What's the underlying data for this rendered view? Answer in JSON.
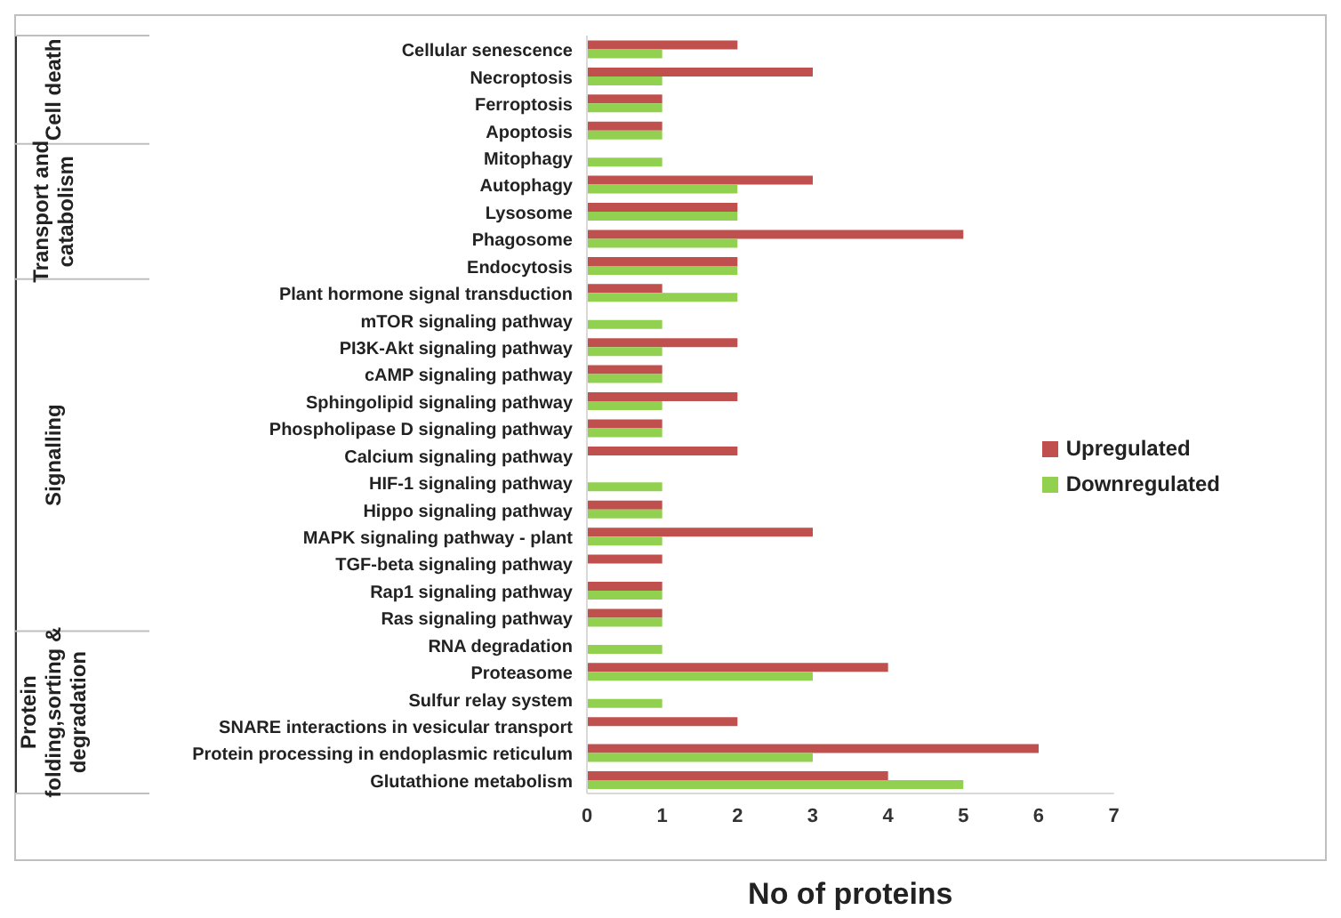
{
  "chart_data": {
    "type": "bar",
    "orientation": "horizontal",
    "xlabel": "No of proteins",
    "categories": [
      "Cellular senescence",
      "Necroptosis",
      "Ferroptosis",
      "Apoptosis",
      "Mitophagy",
      "Autophagy",
      "Lysosome",
      "Phagosome",
      "Endocytosis",
      "Plant hormone signal transduction",
      "mTOR signaling pathway",
      "PI3K-Akt signaling pathway",
      "cAMP signaling pathway",
      "Sphingolipid signaling pathway",
      "Phospholipase D signaling pathway",
      "Calcium signaling pathway",
      "HIF-1 signaling pathway",
      "Hippo signaling pathway",
      "MAPK signaling pathway - plant",
      "TGF-beta signaling pathway",
      "Rap1 signaling pathway",
      "Ras signaling pathway",
      "RNA degradation",
      "Proteasome",
      "Sulfur relay system",
      "SNARE interactions in vesicular transport",
      "Protein processing in endoplasmic reticulum",
      "Glutathione metabolism"
    ],
    "series": [
      {
        "name": "Upregulated",
        "color": "#c0504d",
        "values": [
          2,
          3,
          1,
          1,
          null,
          3,
          2,
          5,
          2,
          1,
          null,
          2,
          1,
          2,
          1,
          2,
          null,
          1,
          3,
          1,
          1,
          1,
          null,
          4,
          null,
          2,
          6,
          4
        ]
      },
      {
        "name": "Downregulated",
        "color": "#92d050",
        "values": [
          1,
          1,
          1,
          1,
          1,
          2,
          2,
          2,
          2,
          2,
          1,
          1,
          1,
          1,
          1,
          null,
          1,
          1,
          1,
          null,
          1,
          1,
          1,
          3,
          1,
          null,
          3,
          5
        ]
      }
    ],
    "xlim": [
      0,
      7
    ],
    "xticks": [
      0,
      1,
      2,
      3,
      4,
      5,
      6,
      7
    ],
    "grid": false,
    "legend": "right",
    "annotations": [
      "Cell death",
      "Transport and\ncatabolism",
      "Signalling",
      "Protein\nfolding,sorting &\ndegradation"
    ]
  }
}
